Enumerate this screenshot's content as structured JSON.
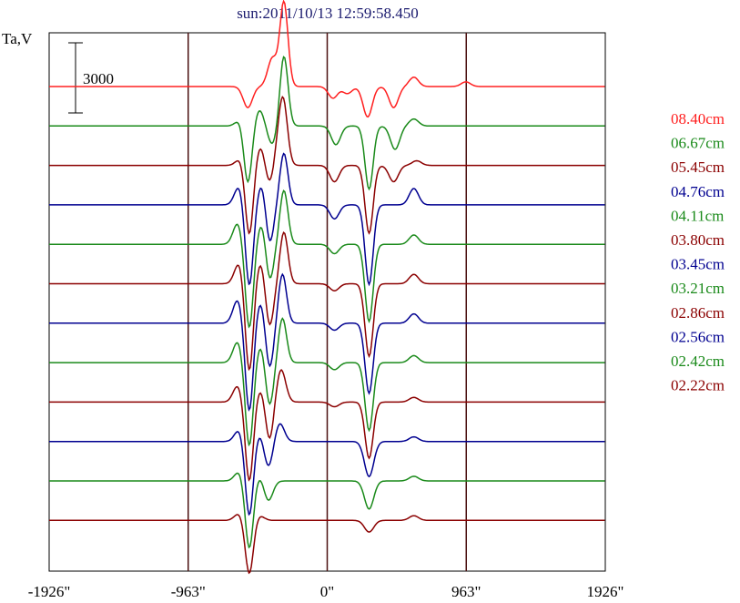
{
  "chart_data": {
    "type": "line",
    "title": "sun:2011/10/13 12:59:58.450",
    "ylabel": "Ta,V",
    "scale_bar_label": "3000",
    "xlim": [
      -1926,
      1926
    ],
    "x_ticks": [
      {
        "value": -1926,
        "label": "-1926\""
      },
      {
        "value": -963,
        "label": "-963\""
      },
      {
        "value": 0,
        "label": "0\""
      },
      {
        "value": 963,
        "label": "963\""
      },
      {
        "value": 1926,
        "label": "1926\""
      }
    ],
    "grid_x": [
      -963,
      0,
      963
    ],
    "series": [
      {
        "name": "08.40cm",
        "color": "#ff2020",
        "dips": [
          [
            -550,
            -900
          ],
          [
            -380,
            1200
          ],
          [
            -300,
            3600
          ],
          [
            40,
            -500
          ],
          [
            140,
            -300
          ],
          [
            280,
            -1300
          ],
          [
            460,
            -900
          ],
          [
            600,
            400
          ],
          [
            960,
            200
          ]
        ]
      },
      {
        "name": "06.67cm",
        "color": "#1a8a1a",
        "dips": [
          [
            -600,
            300
          ],
          [
            -550,
            -2500
          ],
          [
            -470,
            700
          ],
          [
            -380,
            -800
          ],
          [
            -300,
            3000
          ],
          [
            60,
            -800
          ],
          [
            290,
            -2700
          ],
          [
            470,
            -1000
          ],
          [
            600,
            300
          ]
        ]
      },
      {
        "name": "05.45cm",
        "color": "#8b0000",
        "dips": [
          [
            -600,
            300
          ],
          [
            -540,
            -3000
          ],
          [
            -460,
            900
          ],
          [
            -400,
            -900
          ],
          [
            -330,
            1300
          ],
          [
            -300,
            2000
          ],
          [
            50,
            -700
          ],
          [
            290,
            -2900
          ],
          [
            460,
            -700
          ],
          [
            620,
            200
          ]
        ]
      },
      {
        "name": "04.76cm",
        "color": "#000090",
        "dips": [
          [
            -610,
            800
          ],
          [
            -540,
            -3500
          ],
          [
            -450,
            1000
          ],
          [
            -400,
            -1800
          ],
          [
            -300,
            2200
          ],
          [
            50,
            -600
          ],
          [
            290,
            -3400
          ],
          [
            600,
            700
          ]
        ]
      },
      {
        "name": "04.11cm",
        "color": "#1a8a1a",
        "dips": [
          [
            -620,
            900
          ],
          [
            -540,
            -3600
          ],
          [
            -450,
            1000
          ],
          [
            -400,
            -1700
          ],
          [
            -300,
            2300
          ],
          [
            50,
            -400
          ],
          [
            290,
            -3300
          ],
          [
            600,
            400
          ]
        ]
      },
      {
        "name": "03.80cm",
        "color": "#8b0000",
        "dips": [
          [
            -610,
            900
          ],
          [
            -540,
            -3800
          ],
          [
            -460,
            1000
          ],
          [
            -400,
            -1900
          ],
          [
            -300,
            2200
          ],
          [
            50,
            -300
          ],
          [
            290,
            -3100
          ],
          [
            600,
            400
          ]
        ]
      },
      {
        "name": "03.45cm",
        "color": "#000090",
        "dips": [
          [
            -620,
            1000
          ],
          [
            -540,
            -3800
          ],
          [
            -460,
            1000
          ],
          [
            -400,
            -2000
          ],
          [
            -310,
            2100
          ],
          [
            50,
            -300
          ],
          [
            290,
            -3000
          ],
          [
            600,
            400
          ]
        ]
      },
      {
        "name": "03.21cm",
        "color": "#1a8a1a",
        "dips": [
          [
            -620,
            900
          ],
          [
            -540,
            -3600
          ],
          [
            -460,
            800
          ],
          [
            -400,
            -1900
          ],
          [
            -310,
            1900
          ],
          [
            50,
            -300
          ],
          [
            290,
            -2900
          ],
          [
            600,
            300
          ]
        ]
      },
      {
        "name": "02.86cm",
        "color": "#8b0000",
        "dips": [
          [
            -620,
            700
          ],
          [
            -540,
            -3400
          ],
          [
            -460,
            600
          ],
          [
            -400,
            -1700
          ],
          [
            -320,
            1400
          ],
          [
            50,
            -200
          ],
          [
            290,
            -2400
          ],
          [
            600,
            200
          ]
        ]
      },
      {
        "name": "02.56cm",
        "color": "#000090",
        "dips": [
          [
            -610,
            500
          ],
          [
            -540,
            -3200
          ],
          [
            -460,
            500
          ],
          [
            -410,
            -1200
          ],
          [
            -330,
            800
          ],
          [
            290,
            -1500
          ],
          [
            600,
            200
          ]
        ]
      },
      {
        "name": "02.42cm",
        "color": "#1a8a1a",
        "dips": [
          [
            -610,
            400
          ],
          [
            -540,
            -2900
          ],
          [
            -460,
            300
          ],
          [
            -410,
            -900
          ],
          [
            290,
            -1200
          ],
          [
            600,
            200
          ]
        ]
      },
      {
        "name": "02.22cm",
        "color": "#8b0000",
        "dips": [
          [
            -610,
            300
          ],
          [
            -540,
            -2300
          ],
          [
            -470,
            200
          ],
          [
            290,
            -500
          ],
          [
            600,
            200
          ]
        ]
      }
    ],
    "grid": false,
    "legend_position": "right"
  }
}
